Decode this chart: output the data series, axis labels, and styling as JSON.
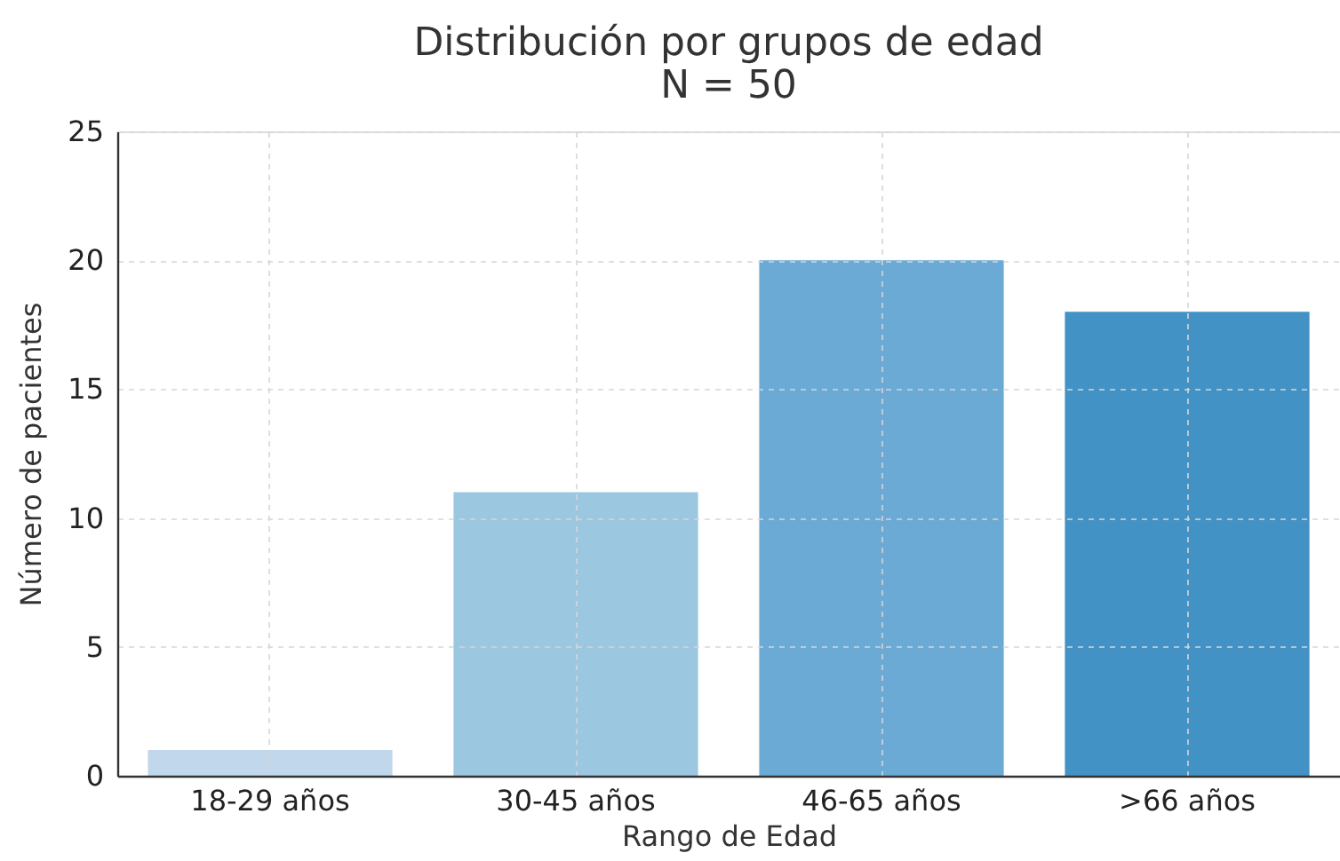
{
  "chart_data": {
    "type": "bar",
    "title": "Distribución por grupos de edad",
    "subtitle": "N = 50",
    "xlabel": "Rango de Edad",
    "ylabel": "Número de pacientes",
    "categories": [
      "18-29 años",
      "30-45 años",
      "46-65 años",
      ">66 años"
    ],
    "values": [
      1,
      11,
      20,
      18
    ],
    "colors": [
      "#c1d7eb",
      "#9bc7e0",
      "#6aaad4",
      "#4292c5"
    ],
    "ylim": [
      0,
      25
    ],
    "yticks": [
      0,
      5,
      10,
      15,
      20,
      25
    ],
    "grid": true
  }
}
